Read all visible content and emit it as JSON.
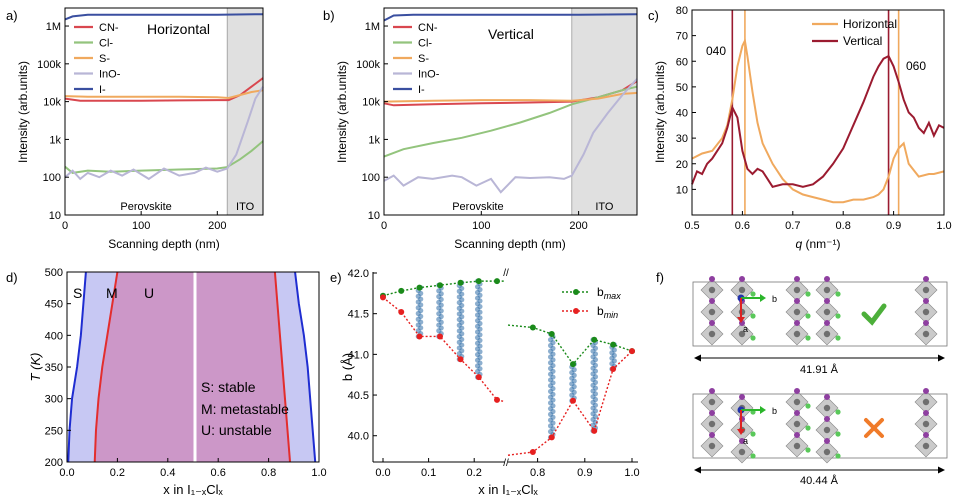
{
  "colors": {
    "cn": "#d9474f",
    "cl": "#93c47d",
    "s": "#f0a95e",
    "ino": "#b9b6d6",
    "i": "#3a4fa0",
    "ito_bg": "#e0e0e0",
    "horizontal": "#f0a95e",
    "vertical": "#9b1b30",
    "stable": "#c7c8f3",
    "unstable": "#cc97c8",
    "boundary_blue": "#1f2dd1",
    "boundary_red": "#e32d2d",
    "bmax": "#1a8a1a",
    "bmin": "#e62020",
    "scatter": "#2f6ea8"
  },
  "chart_data": [
    {
      "panel": "a)",
      "type": "line",
      "annotation": "Horizontal",
      "xlabel": "Scanning depth (nm)",
      "ylabel": "Intensity (arb.units)",
      "xlim": [
        0,
        260
      ],
      "ylim": [
        10,
        3000000
      ],
      "yscale": "log",
      "xticks": [
        0,
        100,
        200
      ],
      "ytick_labels": [
        "10",
        "100",
        "1k",
        "10k",
        "100k",
        "1M"
      ],
      "regions": [
        {
          "label": "Perovskite",
          "from": 0,
          "to": 213
        },
        {
          "label": "ITO",
          "from": 213,
          "to": 260
        }
      ],
      "series": [
        {
          "name": "CN-",
          "x": [
            0,
            20,
            50,
            100,
            150,
            200,
            215,
            230,
            245,
            260
          ],
          "values": [
            12000,
            10500,
            10500,
            10500,
            10800,
            11000,
            11000,
            15000,
            25000,
            42000
          ]
        },
        {
          "name": "Cl-",
          "x": [
            0,
            10,
            30,
            60,
            100,
            150,
            200,
            213,
            230,
            245,
            260
          ],
          "values": [
            190,
            130,
            150,
            140,
            150,
            160,
            170,
            185,
            300,
            500,
            900
          ]
        },
        {
          "name": "S-",
          "x": [
            0,
            30,
            60,
            100,
            150,
            200,
            215,
            230,
            245,
            260
          ],
          "values": [
            14000,
            13500,
            13500,
            13500,
            13500,
            13000,
            12500,
            15000,
            18000,
            20000
          ]
        },
        {
          "name": "InO-",
          "x": [
            0,
            10,
            20,
            30,
            45,
            60,
            75,
            90,
            110,
            130,
            150,
            170,
            185,
            200,
            213,
            225,
            240,
            250,
            260
          ],
          "values": [
            100,
            150,
            90,
            130,
            100,
            150,
            110,
            160,
            90,
            170,
            110,
            130,
            180,
            140,
            170,
            400,
            3000,
            12000,
            25000
          ]
        },
        {
          "name": "I-",
          "x": [
            0,
            10,
            30,
            80,
            150,
            200,
            260
          ],
          "values": [
            1500000,
            1800000,
            2000000,
            2000000,
            2000000,
            2000000,
            2050000
          ]
        }
      ]
    },
    {
      "panel": "b)",
      "type": "line",
      "annotation": "Vertical",
      "xlabel": "Scanning depth (nm)",
      "ylabel": "Intensity (arb.units)",
      "xlim": [
        0,
        260
      ],
      "ylim": [
        10,
        3000000
      ],
      "yscale": "log",
      "xticks": [
        0,
        100,
        200
      ],
      "ytick_labels": [
        "10",
        "100",
        "1k",
        "10k",
        "100k",
        "1M"
      ],
      "regions": [
        {
          "label": "Perovskite",
          "from": 0,
          "to": 193
        },
        {
          "label": "ITO",
          "from": 193,
          "to": 260
        }
      ],
      "series": [
        {
          "name": "CN-",
          "x": [
            0,
            10,
            50,
            100,
            150,
            193,
            220,
            245,
            260
          ],
          "values": [
            9000,
            8000,
            8500,
            9000,
            9500,
            10000,
            13000,
            20000,
            35000
          ]
        },
        {
          "name": "Cl-",
          "x": [
            0,
            20,
            50,
            80,
            110,
            140,
            170,
            193,
            220,
            245,
            260
          ],
          "values": [
            350,
            550,
            800,
            1100,
            1700,
            2800,
            5000,
            8500,
            13000,
            20000,
            25000
          ]
        },
        {
          "name": "S-",
          "x": [
            0,
            50,
            100,
            150,
            193,
            220,
            245,
            260
          ],
          "values": [
            10000,
            10500,
            11000,
            11000,
            10500,
            12000,
            16000,
            17000
          ]
        },
        {
          "name": "InO-",
          "x": [
            0,
            10,
            20,
            35,
            50,
            70,
            80,
            95,
            110,
            120,
            135,
            150,
            170,
            185,
            193,
            205,
            215,
            230,
            245,
            260
          ],
          "values": [
            80,
            110,
            60,
            100,
            90,
            110,
            100,
            60,
            90,
            40,
            100,
            95,
            100,
            90,
            110,
            400,
            1500,
            5000,
            15000,
            40000
          ]
        },
        {
          "name": "I-",
          "x": [
            0,
            10,
            30,
            100,
            150,
            200,
            260
          ],
          "values": [
            1400000,
            1900000,
            2000000,
            2000000,
            2000000,
            2000000,
            2050000
          ]
        }
      ]
    },
    {
      "panel": "c)",
      "type": "line",
      "xlabel": "q (nm⁻¹)",
      "xlabel_italic": "q",
      "xlabel_unit": "(nm⁻¹)",
      "ylabel": "Intensity (arb.units)",
      "xlim": [
        0.5,
        1.0
      ],
      "ylim": [
        0,
        80
      ],
      "xticks": [
        0.5,
        0.6,
        0.7,
        0.8,
        0.9,
        1.0
      ],
      "yticks": [
        10,
        20,
        30,
        40,
        50,
        60,
        70,
        80
      ],
      "xtick_labels": [
        "0.5",
        "0.6",
        "0.7",
        "0.8",
        "0.9",
        "1.0"
      ],
      "vlines": [
        {
          "x": 0.58,
          "series": "Vertical"
        },
        {
          "x": 0.605,
          "series": "Horizontal"
        },
        {
          "x": 0.89,
          "series": "Vertical"
        },
        {
          "x": 0.91,
          "series": "Horizontal"
        }
      ],
      "annotations": [
        "040",
        "060"
      ],
      "series": [
        {
          "name": "Horizontal",
          "x": [
            0.5,
            0.52,
            0.54,
            0.56,
            0.57,
            0.58,
            0.59,
            0.6,
            0.605,
            0.61,
            0.62,
            0.63,
            0.64,
            0.66,
            0.68,
            0.7,
            0.72,
            0.74,
            0.76,
            0.78,
            0.8,
            0.82,
            0.84,
            0.86,
            0.87,
            0.88,
            0.89,
            0.9,
            0.91,
            0.92,
            0.93,
            0.95,
            0.97,
            0.98,
            1.0
          ],
          "values": [
            22,
            24,
            25,
            30,
            35,
            45,
            58,
            66,
            68,
            62,
            48,
            36,
            28,
            20,
            14,
            10,
            8,
            7,
            6,
            5,
            5,
            6,
            6,
            7,
            8,
            10,
            15,
            22,
            26,
            28,
            20,
            15,
            16,
            16,
            17
          ]
        },
        {
          "name": "Vertical",
          "x": [
            0.5,
            0.51,
            0.52,
            0.53,
            0.54,
            0.55,
            0.56,
            0.57,
            0.58,
            0.59,
            0.6,
            0.61,
            0.62,
            0.63,
            0.64,
            0.65,
            0.66,
            0.68,
            0.7,
            0.72,
            0.74,
            0.76,
            0.78,
            0.8,
            0.82,
            0.84,
            0.86,
            0.87,
            0.88,
            0.89,
            0.9,
            0.91,
            0.92,
            0.93,
            0.94,
            0.95,
            0.96,
            0.97,
            0.98,
            0.99,
            1.0
          ],
          "values": [
            12,
            17,
            16,
            20,
            22,
            25,
            28,
            34,
            42,
            38,
            25,
            18,
            16,
            18,
            17,
            14,
            11,
            12,
            12,
            11,
            12,
            15,
            20,
            26,
            35,
            44,
            54,
            58,
            61,
            62,
            58,
            52,
            45,
            40,
            38,
            34,
            32,
            36,
            31,
            35,
            34
          ]
        }
      ]
    },
    {
      "panel": "d)",
      "type": "area",
      "xlabel": "x in I₁₋ₓClₓ",
      "ylabel": "T (K)",
      "xlim": [
        0.0,
        1.0
      ],
      "ylim": [
        200,
        500
      ],
      "xticks": [
        0.0,
        0.2,
        0.4,
        0.6,
        0.8,
        1.0
      ],
      "yticks": [
        200,
        250,
        300,
        350,
        400,
        450,
        500
      ],
      "xtick_labels": [
        "0.0",
        "0.2",
        "0.4",
        "0.6",
        "0.8",
        "1.0"
      ],
      "region_labels": [
        "S",
        "M",
        "U"
      ],
      "legend_lines": [
        "S: stable",
        "M: metastable",
        "U: unstable"
      ],
      "spinodal_left": {
        "x": [
          0.11,
          0.115,
          0.125,
          0.14,
          0.16,
          0.18,
          0.2
        ],
        "T": [
          200,
          250,
          300,
          350,
          400,
          450,
          500
        ]
      },
      "spinodal_right": {
        "x": [
          0.885,
          0.875,
          0.865,
          0.855,
          0.845,
          0.835,
          0.825
        ],
        "T": [
          200,
          250,
          300,
          350,
          400,
          450,
          500
        ]
      },
      "binodal_left": {
        "x": [
          0.005,
          0.01,
          0.02,
          0.04,
          0.055,
          0.065,
          0.075
        ],
        "T": [
          200,
          250,
          300,
          350,
          400,
          450,
          500
        ]
      },
      "binodal_right": {
        "x": [
          0.985,
          0.975,
          0.965,
          0.955,
          0.94,
          0.92,
          0.905
        ],
        "T": [
          200,
          250,
          300,
          350,
          400,
          450,
          500
        ]
      }
    },
    {
      "panel": "e)",
      "type": "scatter",
      "xlabel": "x in I₁₋ₓClₓ",
      "ylabel": "b (Å)",
      "ylim": [
        39.8,
        42.0
      ],
      "yticks": [
        40.0,
        40.5,
        41.0,
        41.5,
        42.0
      ],
      "xtick_labels": [
        "0.0",
        "0.1",
        "0.2",
        "0.8",
        "0.9",
        "1.0"
      ],
      "legend": [
        "b_max",
        "b_min"
      ],
      "b_max": {
        "x": [
          0.0,
          0.04,
          0.08,
          0.125,
          0.17,
          0.21,
          0.25,
          0.79,
          0.83,
          0.875,
          0.92,
          0.96,
          1.0
        ],
        "values": [
          41.72,
          41.78,
          41.82,
          41.85,
          41.88,
          41.9,
          41.9,
          41.33,
          41.25,
          40.88,
          41.18,
          41.12,
          41.04
        ]
      },
      "b_min": {
        "x": [
          0.0,
          0.04,
          0.08,
          0.125,
          0.17,
          0.21,
          0.25,
          0.79,
          0.83,
          0.875,
          0.92,
          0.96,
          1.0
        ],
        "values": [
          41.7,
          41.52,
          41.22,
          41.22,
          40.94,
          40.72,
          40.44,
          39.8,
          39.98,
          40.43,
          40.06,
          40.82,
          41.04
        ]
      },
      "sample_x": [
        0.08,
        0.125,
        0.17,
        0.21,
        0.83,
        0.875,
        0.92,
        0.96
      ]
    },
    {
      "panel": "f)",
      "type": "structure",
      "items": [
        {
          "label": "41.91 Å",
          "verdict": "check"
        },
        {
          "label": "40.44 Å",
          "verdict": "cross"
        }
      ],
      "axis_labels": [
        "b",
        "a"
      ]
    }
  ]
}
